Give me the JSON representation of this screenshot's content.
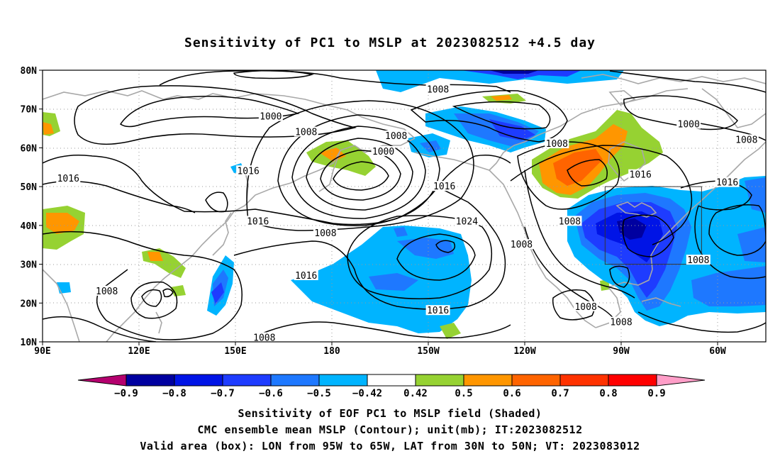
{
  "title": "Sensitivity of PC1 to MSLP at 2023082512 +4.5 day",
  "axes": {
    "lat_labels": [
      "10N",
      "20N",
      "30N",
      "40N",
      "50N",
      "60N",
      "70N",
      "80N"
    ],
    "lat_values": [
      10,
      20,
      30,
      40,
      50,
      60,
      70,
      80
    ],
    "lon_labels": [
      "90E",
      "120E",
      "150E",
      "180",
      "150W",
      "120W",
      "90W",
      "60W"
    ],
    "lon_values": [
      90,
      120,
      150,
      180,
      210,
      240,
      270,
      300
    ],
    "lon_range": [
      90,
      315
    ],
    "lat_range": [
      10,
      80
    ]
  },
  "colorbar": {
    "labels": [
      "-0.9",
      "-0.8",
      "-0.7",
      "-0.6",
      "-0.5",
      "-0.42",
      "0.42",
      "0.5",
      "0.6",
      "0.7",
      "0.8",
      "0.9"
    ],
    "colors": [
      "#b4006e",
      "#0000a0",
      "#0014e6",
      "#1e3cff",
      "#1e78ff",
      "#00b4ff",
      "#ffffff",
      "#96d232",
      "#ff9600",
      "#ff6400",
      "#ff3200",
      "#ff0000",
      "#ff9ec8"
    ]
  },
  "valid_box": {
    "lon_min": 265,
    "lon_max": 295,
    "lat_min": 30,
    "lat_max": 50
  },
  "contour_labels": [
    {
      "text": "1008",
      "lon": 213,
      "lat": 75
    },
    {
      "text": "1000",
      "lon": 161,
      "lat": 68
    },
    {
      "text": "1008",
      "lon": 172,
      "lat": 64
    },
    {
      "text": "1008",
      "lon": 200,
      "lat": 63
    },
    {
      "text": "1008",
      "lon": 250,
      "lat": 61
    },
    {
      "text": "1000",
      "lon": 291,
      "lat": 66
    },
    {
      "text": "1008",
      "lon": 309,
      "lat": 62
    },
    {
      "text": "1000",
      "lon": 196,
      "lat": 59
    },
    {
      "text": "1016",
      "lon": 98,
      "lat": 52
    },
    {
      "text": "1016",
      "lon": 154,
      "lat": 54
    },
    {
      "text": "1016",
      "lon": 215,
      "lat": 50
    },
    {
      "text": "1016",
      "lon": 276,
      "lat": 53
    },
    {
      "text": "1016",
      "lon": 303,
      "lat": 51
    },
    {
      "text": "1016",
      "lon": 157,
      "lat": 41
    },
    {
      "text": "1008",
      "lon": 178,
      "lat": 38
    },
    {
      "text": "1024",
      "lon": 222,
      "lat": 41
    },
    {
      "text": "1008",
      "lon": 239,
      "lat": 35
    },
    {
      "text": "1008",
      "lon": 254,
      "lat": 41
    },
    {
      "text": "1008",
      "lon": 294,
      "lat": 31
    },
    {
      "text": "1016",
      "lon": 172,
      "lat": 27
    },
    {
      "text": "1008",
      "lon": 110,
      "lat": 23
    },
    {
      "text": "1016",
      "lon": 213,
      "lat": 18
    },
    {
      "text": "1008",
      "lon": 259,
      "lat": 19
    },
    {
      "text": "1008",
      "lon": 270,
      "lat": 15
    },
    {
      "text": "1008",
      "lon": 159,
      "lat": 11
    }
  ],
  "captions": [
    "Sensitivity of EOF PC1 to MSLP field (Shaded)",
    "CMC ensemble mean MSLP (Contour); unit(mb); IT:2023082512",
    "Valid area (box): LON from 95W to 65W, LAT from 30N to 50N; VT: 2023083012"
  ]
}
